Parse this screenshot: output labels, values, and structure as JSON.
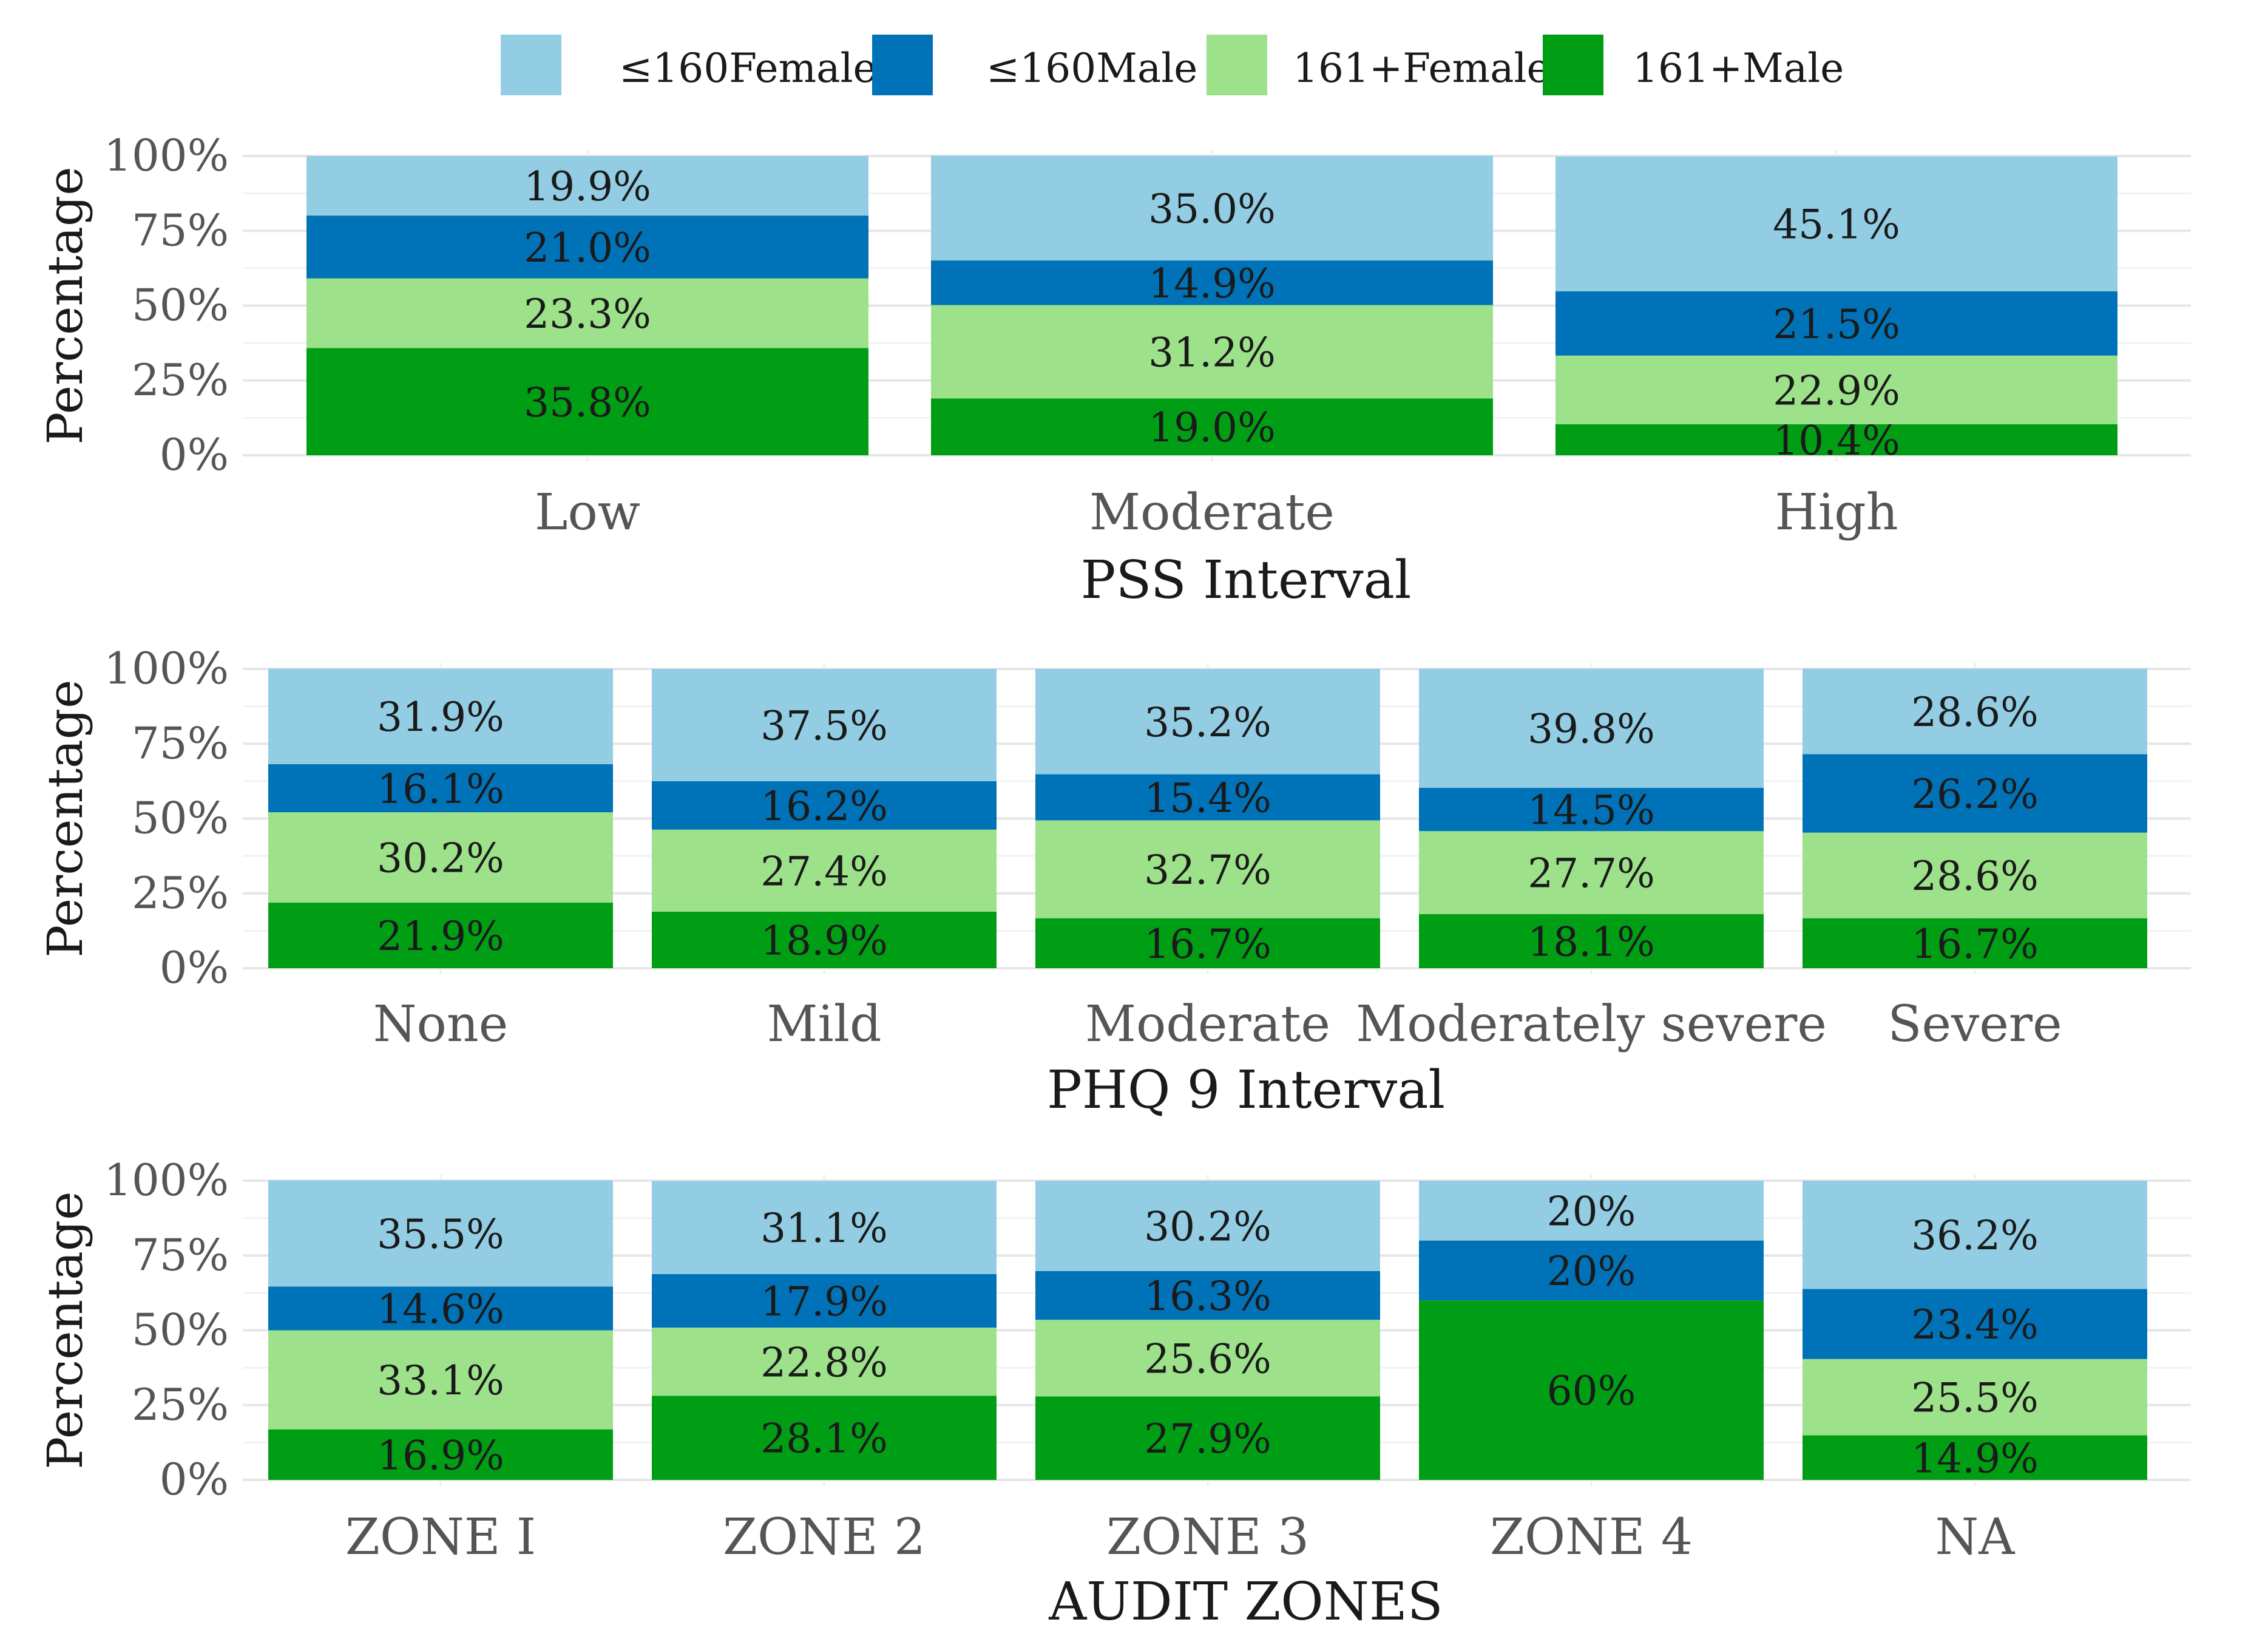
{
  "legend": {
    "items": [
      {
        "label": "≤160Female",
        "color": "#92cde4"
      },
      {
        "label": "≤160Male",
        "color": "#0073b8"
      },
      {
        "label": "161+Female",
        "color": "#9de18a"
      },
      {
        "label": "161+Male",
        "color": "#009e14"
      }
    ]
  },
  "chart_data": [
    {
      "type": "bar",
      "stacked": true,
      "percent": true,
      "title": "",
      "xlabel": "PSS Interval",
      "ylabel": "Percentage",
      "ylim": [
        0,
        100
      ],
      "yticks": [
        "0%",
        "25%",
        "50%",
        "75%",
        "100%"
      ],
      "categories": [
        "Low",
        "Moderate",
        "High"
      ],
      "series": [
        {
          "name": "161+Male",
          "values": [
            35.8,
            19.0,
            10.4
          ],
          "labels": [
            "35.8%",
            "19.0%",
            "10.4%"
          ]
        },
        {
          "name": "161+Female",
          "values": [
            23.3,
            31.2,
            22.9
          ],
          "labels": [
            "23.3%",
            "31.2%",
            "22.9%"
          ]
        },
        {
          "name": "≤160Male",
          "values": [
            21.0,
            14.9,
            21.5
          ],
          "labels": [
            "21.0%",
            "14.9%",
            "21.5%"
          ]
        },
        {
          "name": "≤160Female",
          "values": [
            19.9,
            35.0,
            45.1
          ],
          "labels": [
            "19.9%",
            "35.0%",
            "45.1%"
          ]
        }
      ]
    },
    {
      "type": "bar",
      "stacked": true,
      "percent": true,
      "title": "",
      "xlabel": "PHQ 9 Interval",
      "ylabel": "Percentage",
      "ylim": [
        0,
        100
      ],
      "yticks": [
        "0%",
        "25%",
        "50%",
        "75%",
        "100%"
      ],
      "categories": [
        "None",
        "Mild",
        "Moderate",
        "Moderately severe",
        "Severe"
      ],
      "series": [
        {
          "name": "161+Male",
          "values": [
            21.9,
            18.9,
            16.7,
            18.1,
            16.7
          ],
          "labels": [
            "21.9%",
            "18.9%",
            "16.7%",
            "18.1%",
            "16.7%"
          ]
        },
        {
          "name": "161+Female",
          "values": [
            30.2,
            27.4,
            32.7,
            27.7,
            28.6
          ],
          "labels": [
            "30.2%",
            "27.4%",
            "32.7%",
            "27.7%",
            "28.6%"
          ]
        },
        {
          "name": "≤160Male",
          "values": [
            16.1,
            16.2,
            15.4,
            14.5,
            26.2
          ],
          "labels": [
            "16.1%",
            "16.2%",
            "15.4%",
            "14.5%",
            "26.2%"
          ]
        },
        {
          "name": "≤160Female",
          "values": [
            31.9,
            37.5,
            35.2,
            39.8,
            28.6
          ],
          "labels": [
            "31.9%",
            "37.5%",
            "35.2%",
            "39.8%",
            "28.6%"
          ]
        }
      ]
    },
    {
      "type": "bar",
      "stacked": true,
      "percent": true,
      "title": "",
      "xlabel": "AUDIT ZONES",
      "ylabel": "Percentage",
      "ylim": [
        0,
        100
      ],
      "yticks": [
        "0%",
        "25%",
        "50%",
        "75%",
        "100%"
      ],
      "categories": [
        "ZONE I",
        "ZONE 2",
        "ZONE 3",
        "ZONE 4",
        "NA"
      ],
      "series": [
        {
          "name": "161+Male",
          "values": [
            16.9,
            28.1,
            27.9,
            60,
            14.9
          ],
          "labels": [
            "16.9%",
            "28.1%",
            "27.9%",
            "60%",
            "14.9%"
          ]
        },
        {
          "name": "161+Female",
          "values": [
            33.1,
            22.8,
            25.6,
            0,
            25.5
          ],
          "labels": [
            "33.1%",
            "22.8%",
            "25.6%",
            "",
            "25.5%"
          ]
        },
        {
          "name": "≤160Male",
          "values": [
            14.6,
            17.9,
            16.3,
            20,
            23.4
          ],
          "labels": [
            "14.6%",
            "17.9%",
            "16.3%",
            "20%",
            "23.4%"
          ]
        },
        {
          "name": "≤160Female",
          "values": [
            35.5,
            31.1,
            30.2,
            20,
            36.2
          ],
          "labels": [
            "35.5%",
            "31.1%",
            "30.2%",
            "20%",
            "36.2%"
          ]
        }
      ]
    }
  ]
}
